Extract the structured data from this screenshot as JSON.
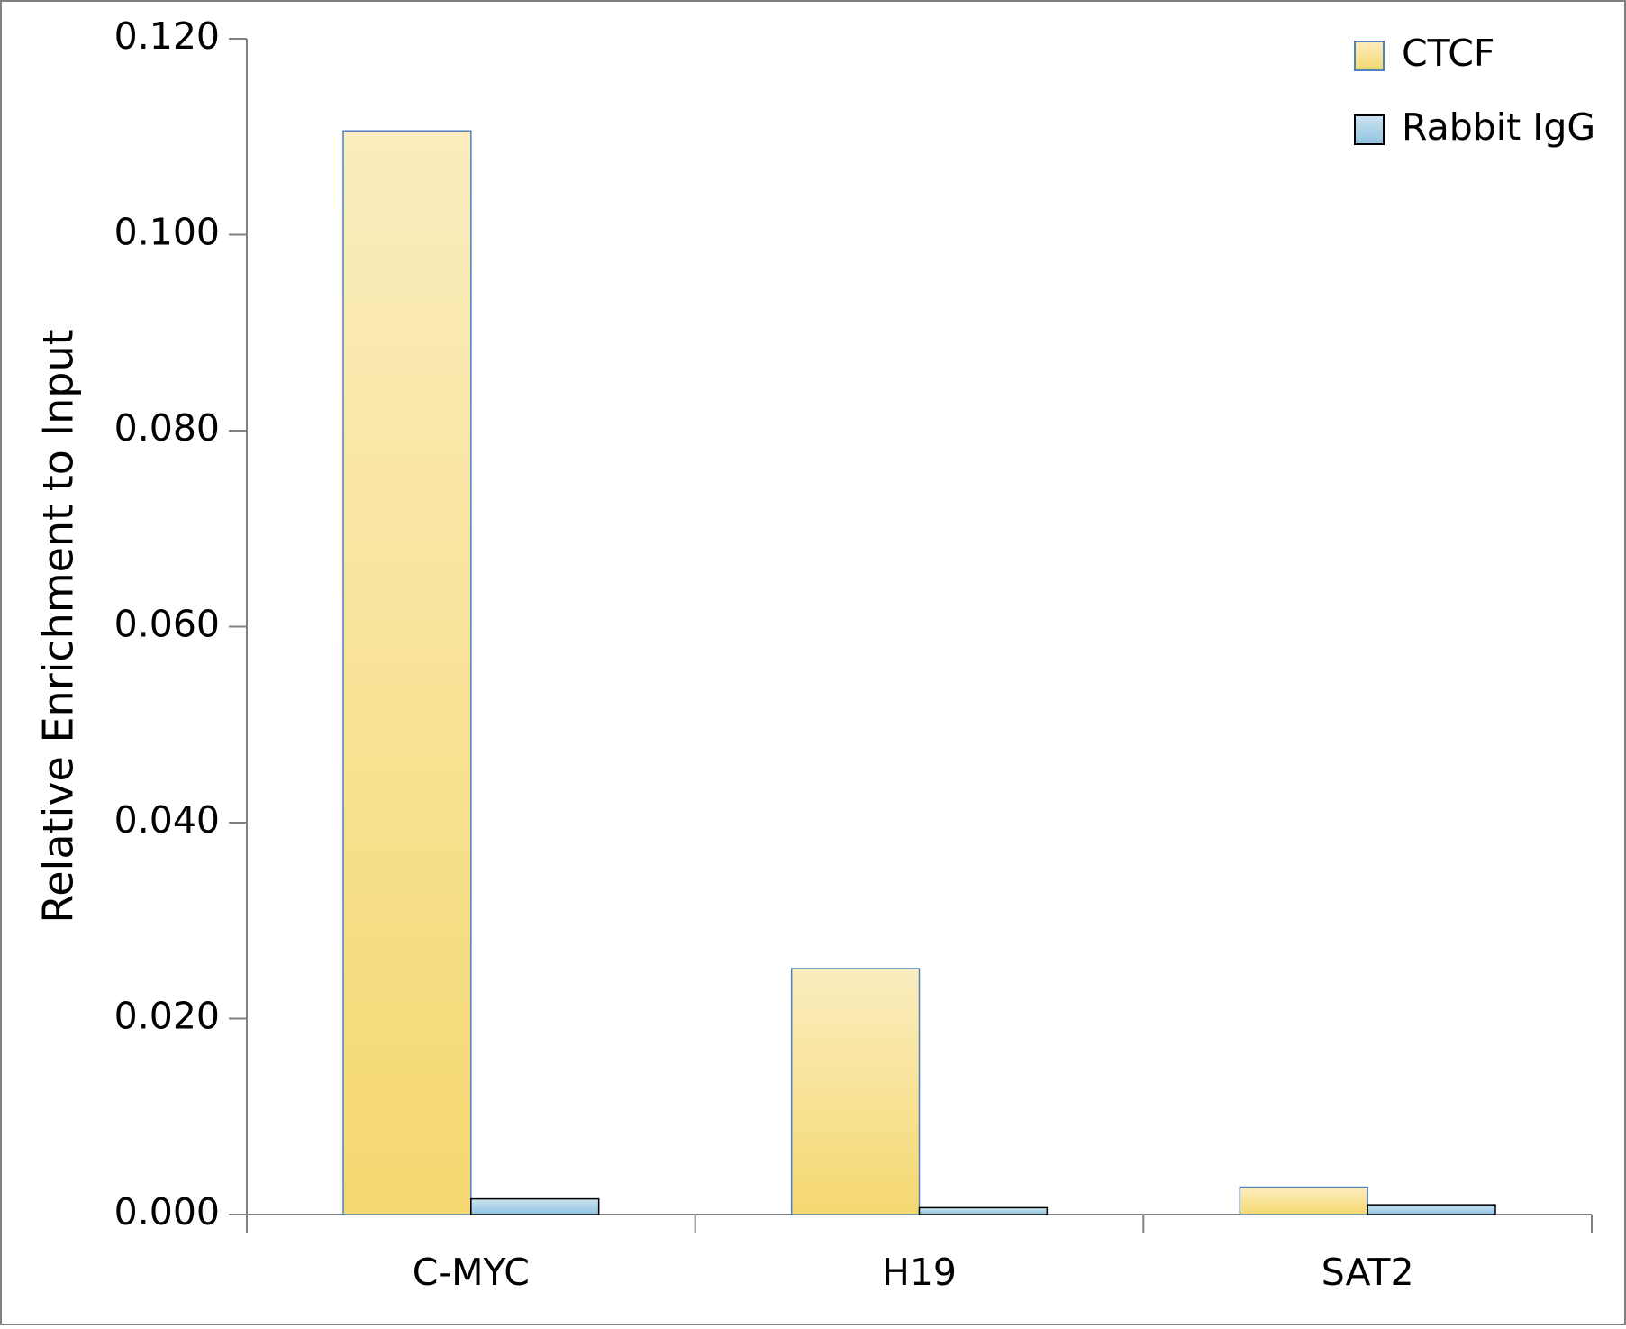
{
  "chart_data": {
    "type": "bar",
    "y_label": "Relative Enrichment to Input",
    "categories": [
      "C-MYC",
      "H19",
      "SAT2"
    ],
    "series": [
      {
        "name": "CTCF",
        "color": "#f5d870",
        "edge": "#4f81bd",
        "values": [
          0.1106,
          0.0251,
          0.0028
        ]
      },
      {
        "name": "Rabbit IgG",
        "color": "#8fc3e0",
        "edge": "#000000",
        "values": [
          0.0016,
          0.0007,
          0.001
        ]
      }
    ],
    "ylim": [
      0,
      0.12
    ],
    "yticks": [
      {
        "value": 0,
        "label": "0.000"
      },
      {
        "value": 0.02,
        "label": "0.020"
      },
      {
        "value": 0.04,
        "label": "0.040"
      },
      {
        "value": 0.06,
        "label": "0.060"
      },
      {
        "value": 0.08,
        "label": "0.080"
      },
      {
        "value": 0.1,
        "label": "0.100"
      },
      {
        "value": 0.12,
        "label": "0.120"
      }
    ],
    "legend": "top-right",
    "grid": false
  }
}
